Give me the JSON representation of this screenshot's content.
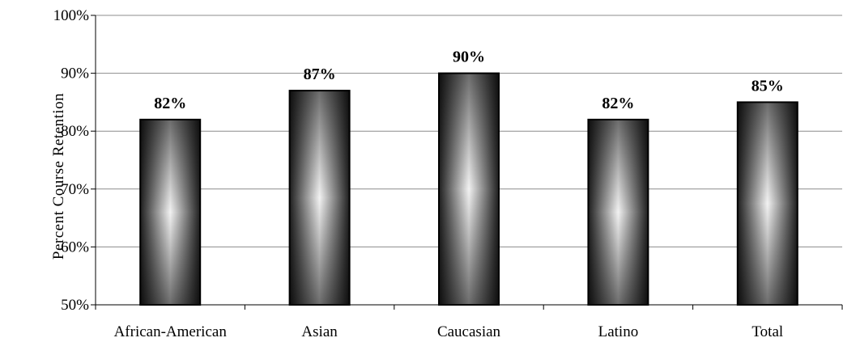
{
  "chart_data": {
    "type": "bar",
    "title": "",
    "xlabel": "",
    "ylabel": "Percent Course Retention",
    "categories": [
      "African-American",
      "Asian",
      "Caucasian",
      "Latino",
      "Total"
    ],
    "values": [
      82,
      87,
      90,
      82,
      85
    ],
    "data_labels": [
      "82%",
      "87%",
      "90%",
      "82%",
      "85%"
    ],
    "ylim": [
      50,
      100
    ],
    "yticks": [
      50,
      60,
      70,
      80,
      90,
      100
    ],
    "ytick_labels": [
      "50%",
      "60%",
      "70%",
      "80%",
      "90%",
      "100%"
    ],
    "grid": true,
    "legend": "none"
  }
}
